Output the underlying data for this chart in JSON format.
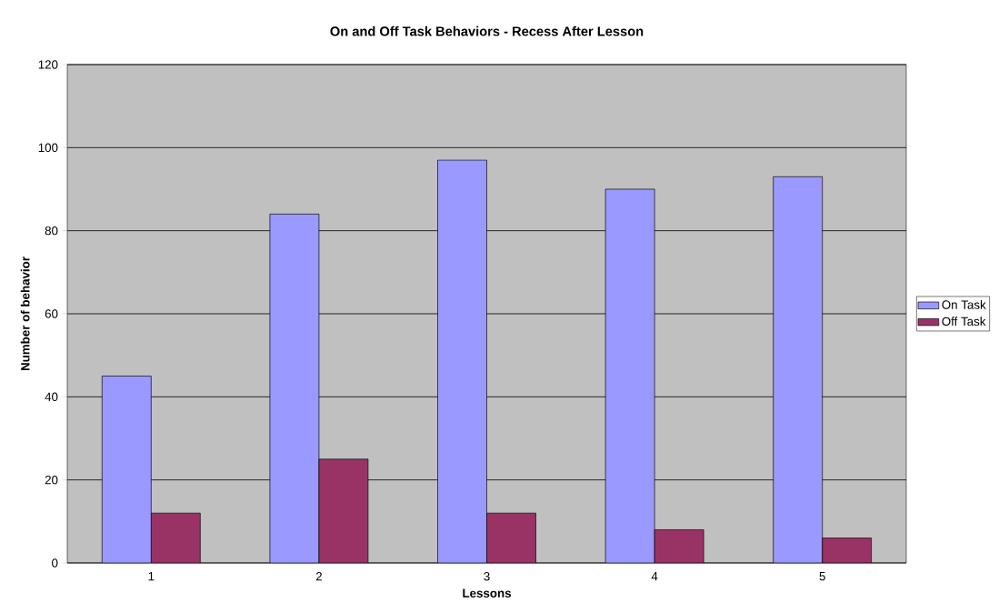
{
  "chart_data": {
    "type": "bar",
    "title": "On and Off Task Behaviors - Recess After Lesson",
    "xlabel": "Lessons",
    "ylabel": "Number of behavior",
    "categories": [
      "1",
      "2",
      "3",
      "4",
      "5"
    ],
    "series": [
      {
        "name": "On Task",
        "color": "#9999ff",
        "values": [
          45,
          84,
          97,
          90,
          93
        ]
      },
      {
        "name": "Off Task",
        "color": "#993366",
        "values": [
          12,
          25,
          12,
          8,
          6
        ]
      }
    ],
    "ylim": [
      0,
      120
    ],
    "yticks": [
      0,
      20,
      40,
      60,
      80,
      100,
      120
    ],
    "grid": "y",
    "legend": "right"
  }
}
